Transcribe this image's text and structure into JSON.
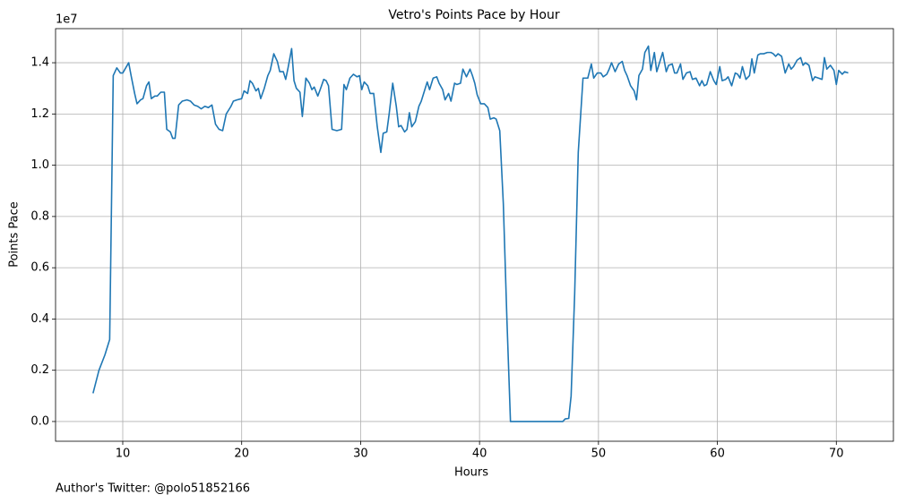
{
  "chart_data": {
    "type": "line",
    "title": "Vetro's Points Pace by Hour",
    "x_label": "Hours",
    "y_label": "Points Pace",
    "y_offset_text": "1e7",
    "footnote": "Author's Twitter: @polo51852166",
    "color": "#1f77b4",
    "grid": true,
    "xlim": [
      4.35,
      74.8
    ],
    "ylim": [
      -770000,
      15330000
    ],
    "xticks": [
      10,
      20,
      30,
      40,
      50,
      60,
      70
    ],
    "yticks": [
      {
        "value": 0,
        "label": "0.0"
      },
      {
        "value": 2000000,
        "label": "0.2"
      },
      {
        "value": 4000000,
        "label": "0.4"
      },
      {
        "value": 6000000,
        "label": "0.6"
      },
      {
        "value": 8000000,
        "label": "0.8"
      },
      {
        "value": 10000000,
        "label": "1.0"
      },
      {
        "value": 12000000,
        "label": "1.2"
      },
      {
        "value": 14000000,
        "label": "1.4"
      }
    ],
    "x": [
      7.5,
      8.0,
      8.5,
      8.9,
      9.2,
      9.5,
      9.8,
      10.0,
      10.5,
      10.7,
      11.0,
      11.2,
      11.5,
      11.7,
      12.0,
      12.2,
      12.4,
      12.7,
      12.9,
      13.2,
      13.5,
      13.7,
      14.0,
      14.2,
      14.4,
      14.7,
      15.0,
      15.4,
      15.7,
      16.0,
      16.3,
      16.6,
      16.9,
      17.2,
      17.5,
      17.8,
      18.1,
      18.4,
      18.7,
      19.1,
      19.3,
      19.6,
      20.0,
      20.2,
      20.5,
      20.7,
      20.9,
      21.2,
      21.4,
      21.6,
      21.9,
      22.2,
      22.4,
      22.7,
      23.0,
      23.2,
      23.5,
      23.7,
      23.9,
      24.2,
      24.4,
      24.6,
      24.9,
      25.1,
      25.4,
      25.7,
      25.9,
      26.1,
      26.4,
      26.6,
      26.9,
      27.1,
      27.3,
      27.6,
      28.0,
      28.4,
      28.6,
      28.8,
      29.1,
      29.4,
      29.7,
      29.9,
      30.1,
      30.3,
      30.6,
      30.8,
      31.1,
      31.4,
      31.7,
      31.9,
      32.2,
      32.4,
      32.7,
      33.0,
      33.2,
      33.4,
      33.7,
      33.9,
      34.1,
      34.3,
      34.6,
      34.9,
      35.1,
      35.4,
      35.6,
      35.8,
      36.1,
      36.4,
      36.6,
      36.9,
      37.1,
      37.4,
      37.6,
      37.9,
      38.1,
      38.4,
      38.6,
      38.9,
      39.2,
      39.4,
      39.6,
      39.8,
      40.1,
      40.4,
      40.7,
      40.9,
      41.2,
      41.4,
      41.7,
      42.0,
      42.3,
      42.6,
      43.5,
      44.5,
      45.5,
      46.5,
      47.0,
      47.2,
      47.5,
      47.7,
      48.0,
      48.3,
      48.7,
      49.1,
      49.4,
      49.6,
      49.9,
      50.2,
      50.4,
      50.7,
      50.9,
      51.1,
      51.4,
      51.7,
      52.0,
      52.2,
      52.4,
      52.7,
      53.0,
      53.2,
      53.4,
      53.7,
      53.9,
      54.2,
      54.4,
      54.7,
      54.9,
      55.1,
      55.4,
      55.7,
      55.9,
      56.2,
      56.4,
      56.6,
      56.9,
      57.1,
      57.4,
      57.7,
      57.9,
      58.2,
      58.5,
      58.7,
      58.9,
      59.1,
      59.4,
      59.7,
      59.9,
      60.2,
      60.4,
      60.7,
      60.9,
      61.2,
      61.5,
      61.7,
      61.9,
      62.1,
      62.4,
      62.7,
      62.9,
      63.1,
      63.4,
      63.6,
      63.9,
      64.2,
      64.5,
      64.7,
      64.9,
      65.1,
      65.4,
      65.7,
      66.0,
      66.2,
      66.4,
      66.7,
      67.0,
      67.2,
      67.4,
      67.7,
      68.0,
      68.2,
      68.5,
      68.8,
      69.0,
      69.2,
      69.5,
      69.8,
      70.0,
      70.2,
      70.5,
      70.7,
      71.0
    ],
    "values": [
      1100000.0,
      2000000.0,
      2600000.0,
      3200000.0,
      13500000.0,
      13800000.0,
      13600000.0,
      13600000.0,
      14000000.0,
      13500000.0,
      12800000.0,
      12400000.0,
      12550000.0,
      12600000.0,
      13100000.0,
      13250000.0,
      12600000.0,
      12700000.0,
      12700000.0,
      12850000.0,
      12850000.0,
      11400000.0,
      11300000.0,
      11050000.0,
      11050000.0,
      12350000.0,
      12500000.0,
      12550000.0,
      12500000.0,
      12350000.0,
      12300000.0,
      12200000.0,
      12300000.0,
      12250000.0,
      12350000.0,
      11600000.0,
      11400000.0,
      11350000.0,
      12000000.0,
      12300000.0,
      12500000.0,
      12550000.0,
      12600000.0,
      12900000.0,
      12800000.0,
      13300000.0,
      13200000.0,
      12900000.0,
      13000000.0,
      12600000.0,
      13000000.0,
      13500000.0,
      13700000.0,
      14350000.0,
      14050000.0,
      13650000.0,
      13650000.0,
      13350000.0,
      13800000.0,
      14550000.0,
      13300000.0,
      13000000.0,
      12850000.0,
      11900000.0,
      13400000.0,
      13200000.0,
      12950000.0,
      13050000.0,
      12700000.0,
      12950000.0,
      13350000.0,
      13300000.0,
      13100000.0,
      11400000.0,
      11350000.0,
      11400000.0,
      13150000.0,
      12950000.0,
      13400000.0,
      13550000.0,
      13450000.0,
      13500000.0,
      12950000.0,
      13250000.0,
      13100000.0,
      12800000.0,
      12800000.0,
      11500000.0,
      10500000.0,
      11250000.0,
      11300000.0,
      12000000.0,
      13200000.0,
      12300000.0,
      11500000.0,
      11550000.0,
      11300000.0,
      11400000.0,
      12050000.0,
      11500000.0,
      11700000.0,
      12300000.0,
      12500000.0,
      12950000.0,
      13250000.0,
      12950000.0,
      13400000.0,
      13450000.0,
      13200000.0,
      12950000.0,
      12550000.0,
      12800000.0,
      12500000.0,
      13200000.0,
      13150000.0,
      13200000.0,
      13750000.0,
      13450000.0,
      13750000.0,
      13500000.0,
      13200000.0,
      12750000.0,
      12400000.0,
      12400000.0,
      12250000.0,
      11800000.0,
      11850000.0,
      11800000.0,
      11350000.0,
      8500000.0,
      4000000.0,
      0,
      0,
      0,
      0,
      0,
      0,
      100000.0,
      120000.0,
      1000000.0,
      5000000.0,
      10500000.0,
      13400000.0,
      13400000.0,
      13950000.0,
      13400000.0,
      13600000.0,
      13600000.0,
      13450000.0,
      13550000.0,
      13750000.0,
      14000000.0,
      13650000.0,
      13950000.0,
      14050000.0,
      13700000.0,
      13500000.0,
      13100000.0,
      12900000.0,
      12550000.0,
      13500000.0,
      13750000.0,
      14400000.0,
      14650000.0,
      13700000.0,
      14400000.0,
      13650000.0,
      13950000.0,
      14400000.0,
      13650000.0,
      13900000.0,
      13950000.0,
      13600000.0,
      13600000.0,
      13950000.0,
      13350000.0,
      13600000.0,
      13650000.0,
      13350000.0,
      13400000.0,
      13100000.0,
      13300000.0,
      13100000.0,
      13150000.0,
      13650000.0,
      13300000.0,
      13150000.0,
      13850000.0,
      13300000.0,
      13350000.0,
      13450000.0,
      13100000.0,
      13600000.0,
      13550000.0,
      13400000.0,
      13850000.0,
      13350000.0,
      13500000.0,
      14150000.0,
      13600000.0,
      14300000.0,
      14350000.0,
      14350000.0,
      14400000.0,
      14400000.0,
      14350000.0,
      14250000.0,
      14350000.0,
      14250000.0,
      13600000.0,
      13950000.0,
      13750000.0,
      13850000.0,
      14100000.0,
      14200000.0,
      13900000.0,
      14000000.0,
      13900000.0,
      13300000.0,
      13450000.0,
      13400000.0,
      13350000.0,
      14200000.0,
      13750000.0,
      13900000.0,
      13700000.0,
      13150000.0,
      13700000.0,
      13550000.0,
      13650000.0,
      13600000.0
    ]
  }
}
